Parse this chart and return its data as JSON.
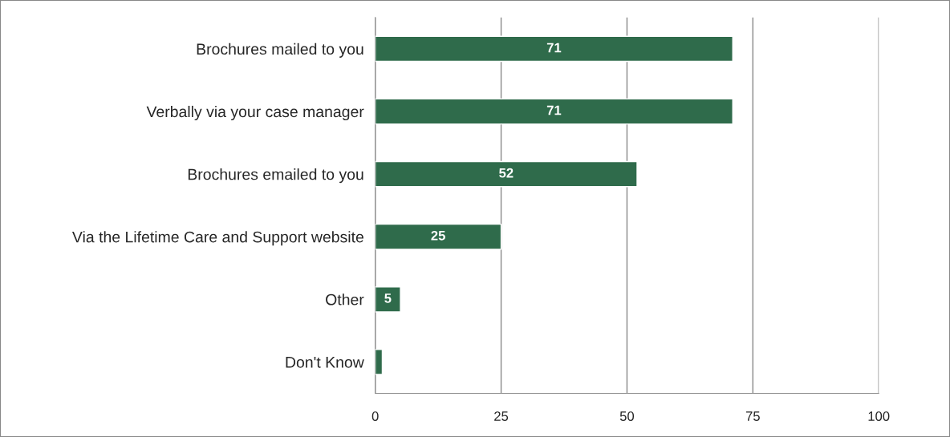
{
  "chart_data": {
    "type": "bar",
    "orientation": "horizontal",
    "categories": [
      "Brochures mailed to you",
      "Verbally via your case manager",
      "Brochures emailed to you",
      "Via the Lifetime Care and Support website",
      "Other",
      "Don't Know"
    ],
    "values": [
      71,
      71,
      52,
      25,
      5,
      1.4
    ],
    "value_labels": [
      "71",
      "71",
      "52",
      "25",
      "5",
      null
    ],
    "color": "#2f6b4b",
    "xlim": [
      0,
      100
    ],
    "xticks": [
      0,
      25,
      50,
      75,
      100
    ],
    "grid": "x",
    "legend": false
  }
}
